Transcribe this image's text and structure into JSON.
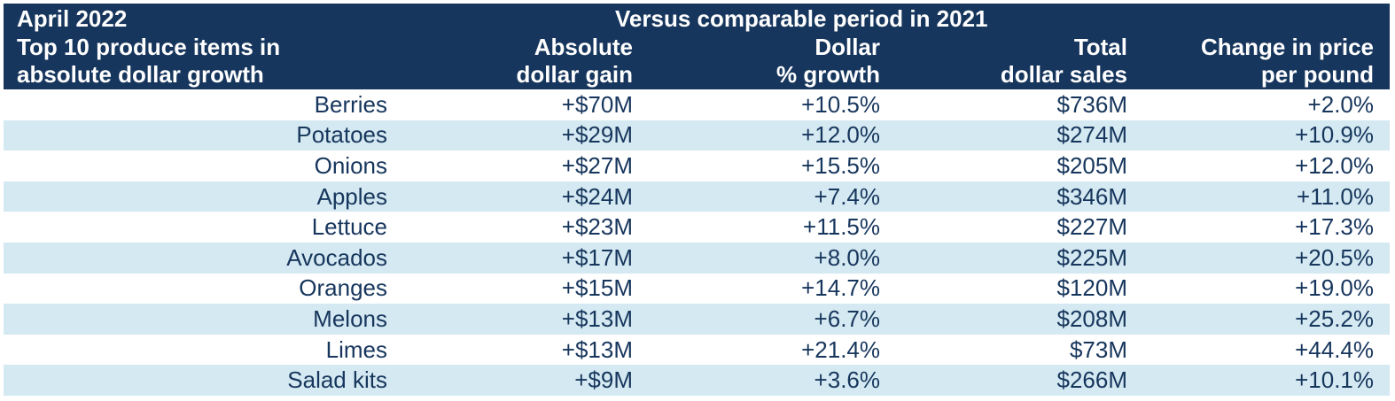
{
  "header": {
    "period": "April 2022",
    "comparison": "Versus comparable period in 2021",
    "item_label_line1": "Top 10 produce items in",
    "item_label_line2": "absolute dollar growth",
    "columns": [
      {
        "line1": "Absolute",
        "line2": "dollar gain"
      },
      {
        "line1": "Dollar",
        "line2": "% growth"
      },
      {
        "line1": "Total",
        "line2": "dollar sales"
      },
      {
        "line1": "Change in price",
        "line2": "per pound"
      }
    ]
  },
  "colors": {
    "header_bg": "#17365d",
    "header_text": "#ffffff",
    "row_shade": "#d4e9f1",
    "row_text": "#17365d"
  },
  "chart_data": {
    "type": "table",
    "title": "April 2022",
    "subtitle": "Versus comparable period in 2021",
    "columns": [
      "Top 10 produce items in absolute dollar growth",
      "Absolute dollar gain",
      "Dollar % growth",
      "Total dollar sales",
      "Change in price per pound"
    ],
    "rows": [
      {
        "item": "Berries",
        "gain": "+$70M",
        "growth": "+10.5%",
        "sales": "$736M",
        "price_change": "+2.0%"
      },
      {
        "item": "Potatoes",
        "gain": "+$29M",
        "growth": "+12.0%",
        "sales": "$274M",
        "price_change": "+10.9%"
      },
      {
        "item": "Onions",
        "gain": "+$27M",
        "growth": "+15.5%",
        "sales": "$205M",
        "price_change": "+12.0%"
      },
      {
        "item": "Apples",
        "gain": "+$24M",
        "growth": "+7.4%",
        "sales": "$346M",
        "price_change": "+11.0%"
      },
      {
        "item": "Lettuce",
        "gain": "+$23M",
        "growth": "+11.5%",
        "sales": "$227M",
        "price_change": "+17.3%"
      },
      {
        "item": "Avocados",
        "gain": "+$17M",
        "growth": "+8.0%",
        "sales": "$225M",
        "price_change": "+20.5%"
      },
      {
        "item": "Oranges",
        "gain": "+$15M",
        "growth": "+14.7%",
        "sales": "$120M",
        "price_change": "+19.0%"
      },
      {
        "item": "Melons",
        "gain": "+$13M",
        "growth": "+6.7%",
        "sales": "$208M",
        "price_change": "+25.2%"
      },
      {
        "item": "Limes",
        "gain": "+$13M",
        "growth": "+21.4%",
        "sales": "$73M",
        "price_change": "+44.4%"
      },
      {
        "item": "Salad kits",
        "gain": "+$9M",
        "growth": "+3.6%",
        "sales": "$266M",
        "price_change": "+10.1%"
      }
    ]
  }
}
